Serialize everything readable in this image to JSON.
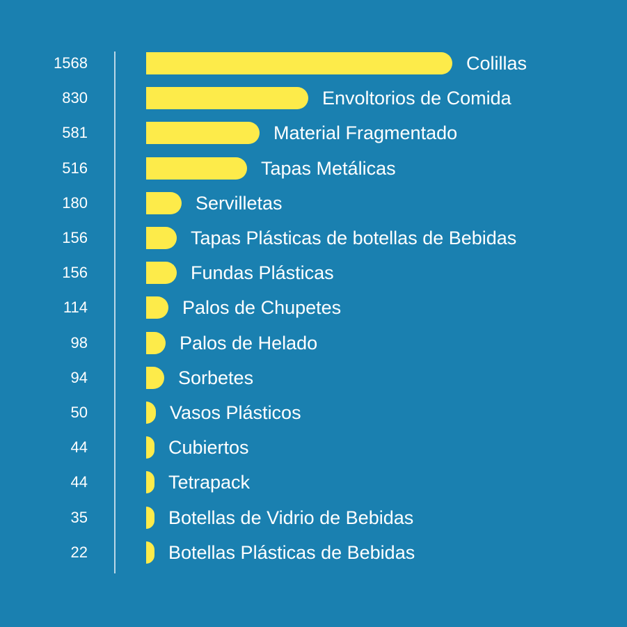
{
  "colors": {
    "background": "#1a80b0",
    "bar": "#fdeb4a",
    "text": "#ffffff",
    "axis": "#d9e8f2"
  },
  "chart_data": {
    "type": "bar",
    "orientation": "horizontal",
    "title": "",
    "xlabel": "",
    "ylabel": "",
    "grid": false,
    "legend": "none",
    "xlim": [
      0,
      1568
    ],
    "categories": [
      "Colillas",
      "Envoltorios de Comida",
      "Material Fragmentado",
      "Tapas Metálicas",
      "Servilletas",
      "Tapas Plásticas de botellas de Bebidas",
      "Fundas Plásticas",
      "Palos de Chupetes",
      "Palos de Helado",
      "Sorbetes",
      "Vasos Plásticos",
      "Cubiertos",
      "Tetrapack",
      "Botellas de Vidrio de Bebidas",
      "Botellas Plásticas de Bebidas"
    ],
    "values": [
      1568,
      830,
      581,
      516,
      180,
      156,
      156,
      114,
      98,
      94,
      50,
      44,
      44,
      35,
      22
    ]
  }
}
